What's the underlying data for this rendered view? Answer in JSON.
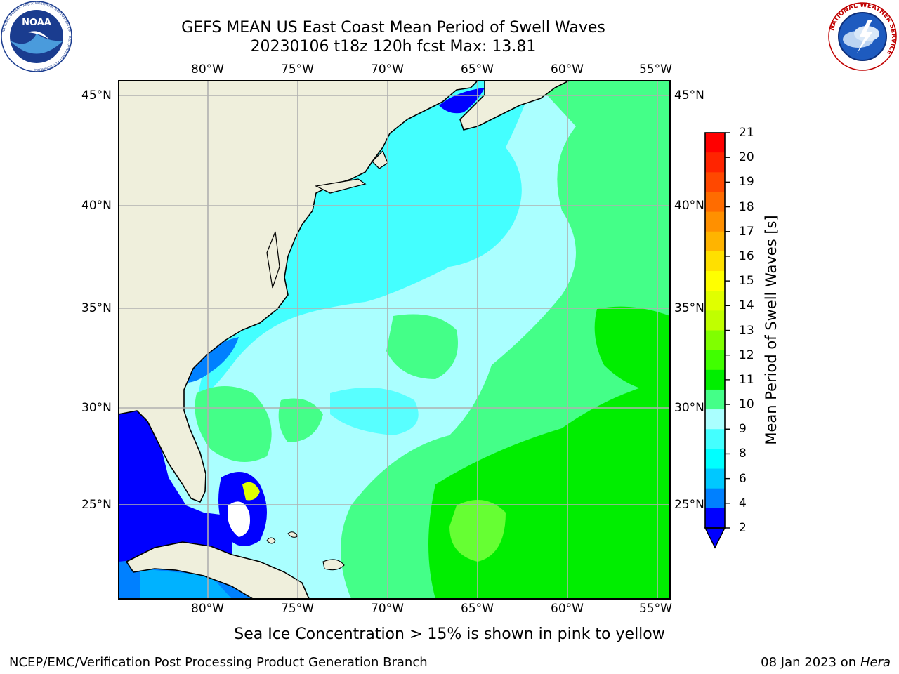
{
  "header": {
    "title_line1": "GEFS MEAN US East Coast Mean Period of Swell Waves",
    "title_line2": "20230106 t18z 120h fcst   Max: 13.81"
  },
  "logos": {
    "left": {
      "name": "noaa-logo",
      "text": "NOAA",
      "ring_text": "NATIONAL OCEANIC AND ATMOSPHERIC ADMINISTRATION · U.S. DEPARTMENT OF COMMERCE"
    },
    "right": {
      "name": "nws-logo",
      "ring_text": "NATIONAL WEATHER SERVICE"
    }
  },
  "map": {
    "longitude_labels": [
      "80°W",
      "75°W",
      "70°W",
      "65°W",
      "60°W",
      "55°W"
    ],
    "latitude_labels": [
      "45°N",
      "40°N",
      "35°N",
      "30°N",
      "25°N"
    ],
    "colors": {
      "land": "#efefdc",
      "coast": "#000000",
      "grid": "#b0b0b0",
      "frame": "#000000"
    }
  },
  "colorbar": {
    "title": "Mean Period of Swell Waves [s]",
    "ticks": [
      "21",
      "20",
      "19",
      "18",
      "17",
      "16",
      "15",
      "14",
      "13",
      "12",
      "11",
      "10",
      "9",
      "8",
      "6",
      "4",
      "2"
    ],
    "colors": [
      "#ff0000",
      "#ff2400",
      "#ff4800",
      "#ff6c00",
      "#ff9000",
      "#ffb400",
      "#ffe000",
      "#ffff00",
      "#e0ff00",
      "#c0ff00",
      "#80ff00",
      "#40ff00",
      "#00ee00",
      "#44ff88",
      "#aaffff",
      "#44ffff",
      "#00ffff",
      "#00c8ff",
      "#0080ff",
      "#0000ff"
    ],
    "extend_color": "#0000ff"
  },
  "notes": {
    "sea_ice": "Sea Ice Concentration > 15% is shown in pink to yellow"
  },
  "footer": {
    "left": "NCEP/EMC/Verification Post Processing Product Generation Branch",
    "right_date": "08 Jan 2023 on ",
    "right_host": "Hera"
  }
}
